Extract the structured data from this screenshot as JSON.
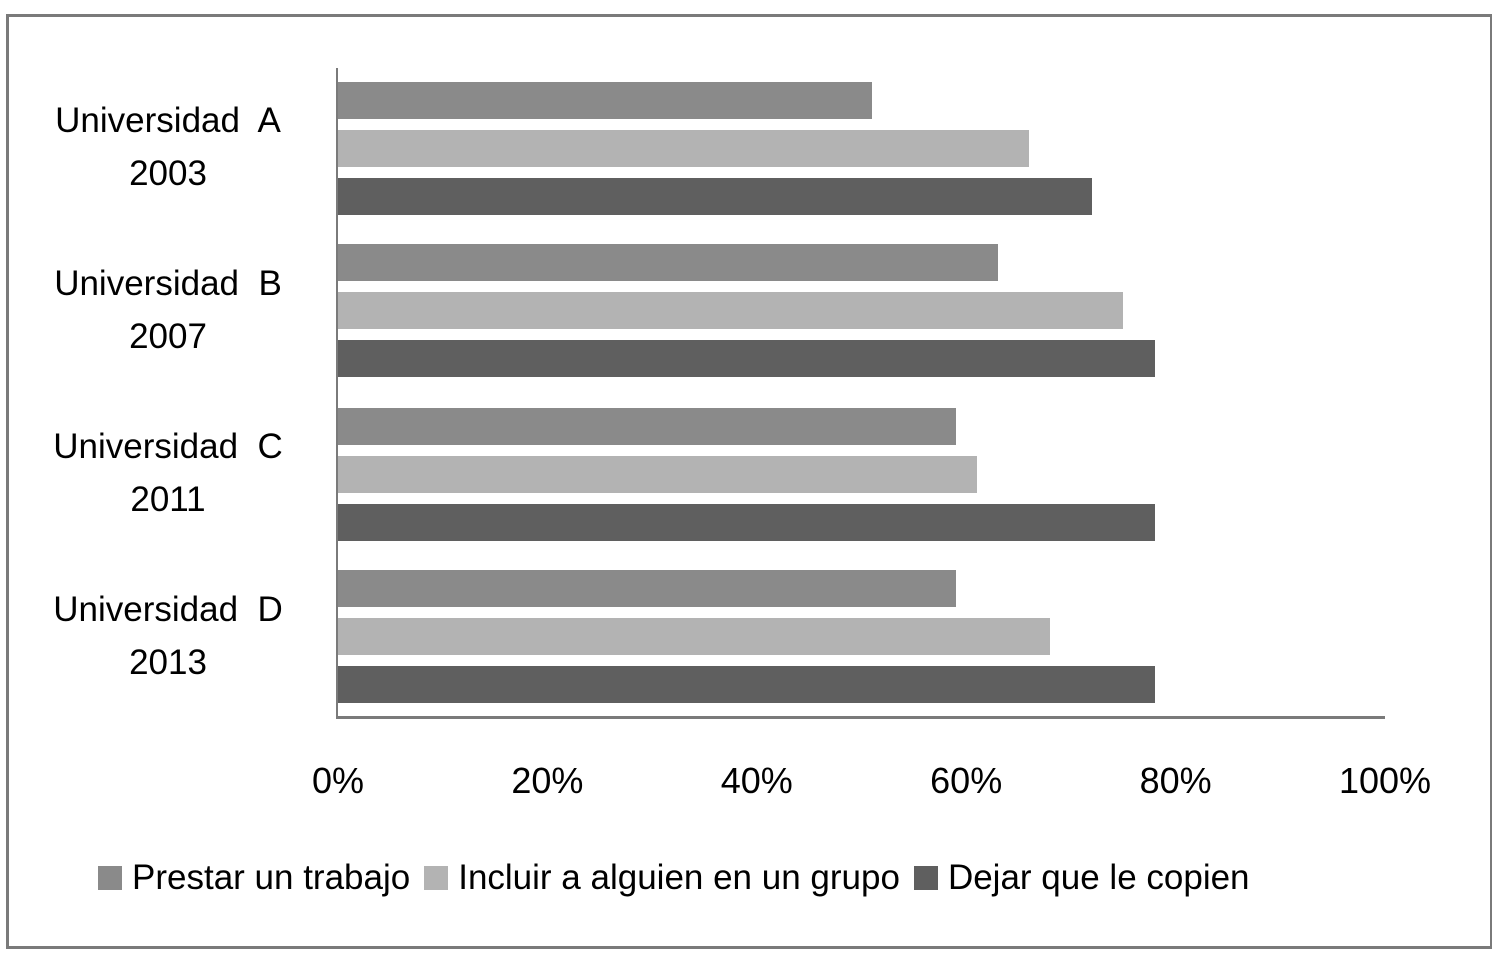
{
  "chart_data": {
    "type": "bar",
    "orientation": "horizontal",
    "title": "",
    "xlabel": "",
    "ylabel": "",
    "xlim": [
      0,
      100
    ],
    "x_ticks": [
      "0%",
      "20%",
      "40%",
      "60%",
      "80%",
      "100%"
    ],
    "grid": false,
    "legend_position": "bottom",
    "categories": [
      [
        "Universidad  A",
        "2003"
      ],
      [
        "Universidad  B",
        "2007"
      ],
      [
        "Universidad  C",
        "2011"
      ],
      [
        "Universidad  D",
        "2013"
      ]
    ],
    "series": [
      {
        "name": "Prestar un trabajo",
        "color": "#8a8a8a",
        "values": [
          51,
          63,
          59,
          59
        ]
      },
      {
        "name": "Incluir a alguien en un grupo",
        "color": "#b3b3b3",
        "values": [
          66,
          75,
          61,
          68
        ]
      },
      {
        "name": "Dejar que le copien",
        "color": "#5f5f5f",
        "values": [
          72,
          78,
          78,
          78
        ]
      }
    ],
    "unit": "%"
  }
}
